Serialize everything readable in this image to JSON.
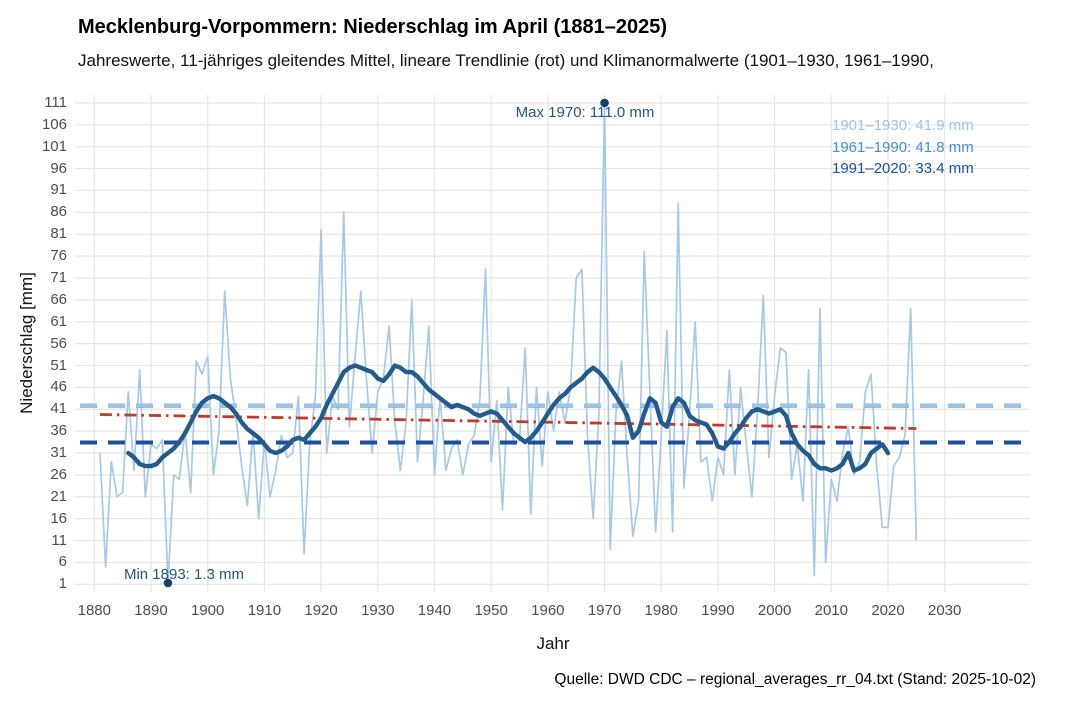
{
  "header": {
    "title": "Mecklenburg-Vorpommern: Niederschlag im April (1881–2025)",
    "subtitle": "Jahreswerte, 11-jähriges gleitendes Mittel, lineare Trendlinie (rot) und Klimanormalwerte (1901–1930, 1961–1990,"
  },
  "caption": {
    "source": "Quelle: DWD CDC – regional_averages_rr_04.txt (Stand: 2025-10-02)"
  },
  "chart_data": {
    "type": "line",
    "title": "Mecklenburg-Vorpommern: Niederschlag im April (1881–2025)",
    "xlabel": "Jahr",
    "ylabel": "Niederschlag [mm]",
    "x_ticks": [
      1880,
      1890,
      1900,
      1910,
      1920,
      1930,
      1940,
      1950,
      1960,
      1970,
      1980,
      1990,
      2000,
      2010,
      2020,
      2030
    ],
    "y_ticks": [
      1,
      6,
      11,
      16,
      21,
      26,
      31,
      36,
      41,
      46,
      51,
      56,
      61,
      66,
      71,
      76,
      81,
      86,
      91,
      96,
      101,
      106,
      111
    ],
    "xlim": [
      1877,
      2045
    ],
    "ylim": [
      1,
      111
    ],
    "grid": true,
    "colors": {
      "annual": "#a6c9e8",
      "moving_avg": "#235c8c",
      "trend": "#bf3b2b",
      "normal_1901": "#9dc3e6",
      "normal_1961": "#3e8fd8",
      "normal_1991": "#1d4f9e",
      "annotation_text": "#24557f",
      "point": "#16436e",
      "tick_text": "#4d4d4d",
      "gridline": "#e6e6e6"
    },
    "series": [
      {
        "name": "Jahreswerte",
        "role": "annual",
        "x_start": 1881,
        "values": [
          31,
          5,
          29,
          21,
          22,
          45,
          27,
          50,
          21,
          33,
          32,
          34,
          1.3,
          26,
          25,
          36,
          22,
          52,
          49,
          53,
          26,
          36,
          68,
          48,
          39,
          28,
          19,
          36,
          16,
          34,
          21,
          27,
          35,
          30,
          31,
          44,
          8,
          33,
          44,
          82,
          31,
          44,
          41,
          86,
          37,
          53,
          68,
          48,
          31,
          45,
          48,
          60,
          38,
          27,
          38,
          66,
          29,
          43,
          60,
          26,
          44,
          27,
          32,
          34,
          26,
          33,
          35,
          43,
          73,
          29,
          43,
          18,
          46,
          33,
          34,
          55,
          17,
          46,
          28,
          45,
          36,
          45,
          38,
          46,
          71,
          73,
          35,
          16,
          40,
          111,
          9,
          40,
          52,
          30,
          12,
          20,
          77,
          45,
          13,
          35,
          59,
          13,
          88,
          23,
          40,
          61,
          29,
          30,
          20,
          30,
          26,
          50,
          26,
          46,
          33,
          21,
          41,
          67,
          30,
          44,
          55,
          54,
          25,
          33,
          20,
          50,
          3,
          64,
          6,
          25,
          20,
          31,
          37,
          26,
          29,
          45,
          49,
          28,
          14,
          14,
          28,
          30,
          35,
          64,
          11
        ]
      },
      {
        "name": "11-jähriges gleitendes Mittel",
        "role": "moving_avg",
        "x_start": 1886,
        "values": [
          31,
          30,
          28.5,
          28,
          28,
          28.5,
          30,
          31,
          32,
          33.5,
          35.5,
          38,
          40.5,
          42.5,
          43.5,
          44,
          43.5,
          42.5,
          41.5,
          40,
          38,
          36.5,
          35.5,
          34.5,
          33,
          31.5,
          31,
          31.5,
          32.5,
          34,
          34.5,
          34,
          35.5,
          37,
          39,
          42,
          44.5,
          47,
          49.5,
          50.5,
          51,
          50.5,
          50,
          49.5,
          48,
          47.5,
          49,
          51,
          50.5,
          49.5,
          49.5,
          48.5,
          47,
          45.5,
          44.5,
          43.5,
          42.5,
          41.5,
          42,
          41.5,
          41,
          40,
          39.5,
          40,
          40.5,
          40,
          38.5,
          37,
          35.5,
          34.5,
          33.5,
          34.5,
          36,
          38,
          40,
          42,
          43.5,
          44.5,
          46,
          47,
          48,
          49.5,
          50.5,
          49.5,
          48,
          46,
          44,
          42,
          39.5,
          34.5,
          36,
          40,
          43.5,
          42.5,
          38,
          37,
          41.5,
          43.5,
          42.5,
          39.5,
          38.5,
          38,
          37.5,
          35.5,
          32.5,
          32,
          33.5,
          35.5,
          37,
          39,
          40.5,
          41,
          40.5,
          40,
          40.5,
          41,
          39.5,
          35.5,
          33,
          31.5,
          30.5,
          28.5,
          27.5,
          27.5,
          27,
          27.5,
          28.5,
          31,
          27,
          27.5,
          28.5,
          31,
          32,
          33,
          31
        ]
      },
      {
        "name": "Lineare Trendlinie (rot)",
        "role": "trend",
        "x": [
          1881,
          2025
        ],
        "values": [
          39.8,
          36.6
        ]
      }
    ],
    "normals": [
      {
        "label": "1901–1930: 41.9 mm",
        "value": 41.9,
        "color_key": "normal_1901"
      },
      {
        "label": "1961–1990: 41.8 mm",
        "value": 41.8,
        "color_key": "normal_1961"
      },
      {
        "label": "1991–2020: 33.4 mm",
        "value": 33.4,
        "color_key": "normal_1991"
      }
    ],
    "normals_draw_order": [
      1,
      0,
      2
    ],
    "annotations": {
      "max": {
        "label": "Max 1970: 111.0 mm",
        "year": 1970,
        "value": 111.0
      },
      "min": {
        "label": "Min 1893: 1.3 mm",
        "year": 1893,
        "value": 1.3
      }
    }
  }
}
